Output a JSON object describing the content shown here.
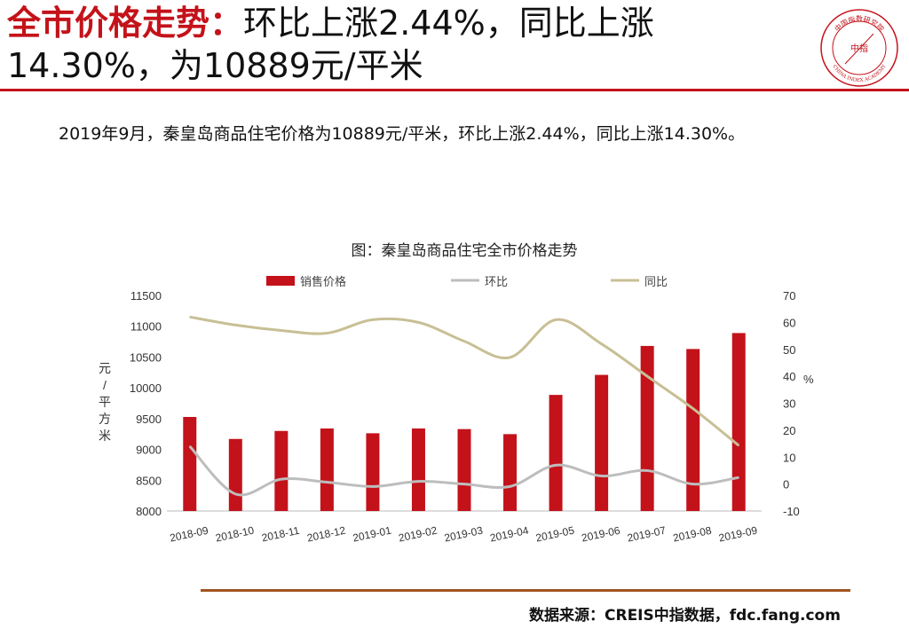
{
  "header": {
    "title_red": "全市价格走势：",
    "title_rest": "环比上涨2.44%，同比上涨",
    "title_line2": "14.30%，为10889元/平米",
    "logo_text": "中国指数研究院",
    "logo_center": "中指",
    "logo_english": "CHINA INDEX ACADEMY"
  },
  "summary": "2019年9月，秦皇岛商品住宅价格为10889元/平米，环比上涨2.44%，同比上涨14.30%。",
  "source": "数据来源：CREIS中指数据，fdc.fang.com",
  "colors": {
    "bar": "#c4121a",
    "mom": "#bdbdbd",
    "yoy": "#c8bf95",
    "accent": "#c4121a"
  },
  "chart_data": {
    "type": "bar",
    "title": "图：秦皇岛商品住宅全市价格走势",
    "categories": [
      "2018-09",
      "2018-10",
      "2018-11",
      "2018-12",
      "2019-01",
      "2019-02",
      "2019-03",
      "2019-04",
      "2019-05",
      "2019-06",
      "2019-07",
      "2019-08",
      "2019-09"
    ],
    "series": [
      {
        "name": "销售价格",
        "type": "bar",
        "axis": "left",
        "values": [
          9527,
          9170,
          9300,
          9340,
          9262,
          9340,
          9330,
          9248,
          9885,
          10210,
          10680,
          10630,
          10889
        ]
      },
      {
        "name": "环比",
        "type": "line",
        "axis": "right",
        "values": [
          14,
          -3.7,
          1.8,
          0.7,
          -0.9,
          1,
          0,
          -0.9,
          7,
          3,
          5,
          0,
          2.44
        ]
      },
      {
        "name": "同比",
        "type": "line",
        "axis": "right",
        "values": [
          62,
          59,
          57,
          56,
          61,
          60,
          53,
          47,
          61,
          52,
          40,
          28,
          14.3
        ]
      }
    ],
    "ylabel": "元/平方米",
    "y2label": "%",
    "ylim": [
      8000,
      11500
    ],
    "y2lim": [
      -10,
      70
    ],
    "yticks": [
      "8000",
      "8500",
      "9000",
      "9500",
      "10000",
      "10500",
      "11000",
      "11500"
    ],
    "y2ticks": [
      "-10",
      "0",
      "10",
      "20",
      "30",
      "40",
      "50",
      "60",
      "70"
    ],
    "legend": "top",
    "grid": false
  }
}
